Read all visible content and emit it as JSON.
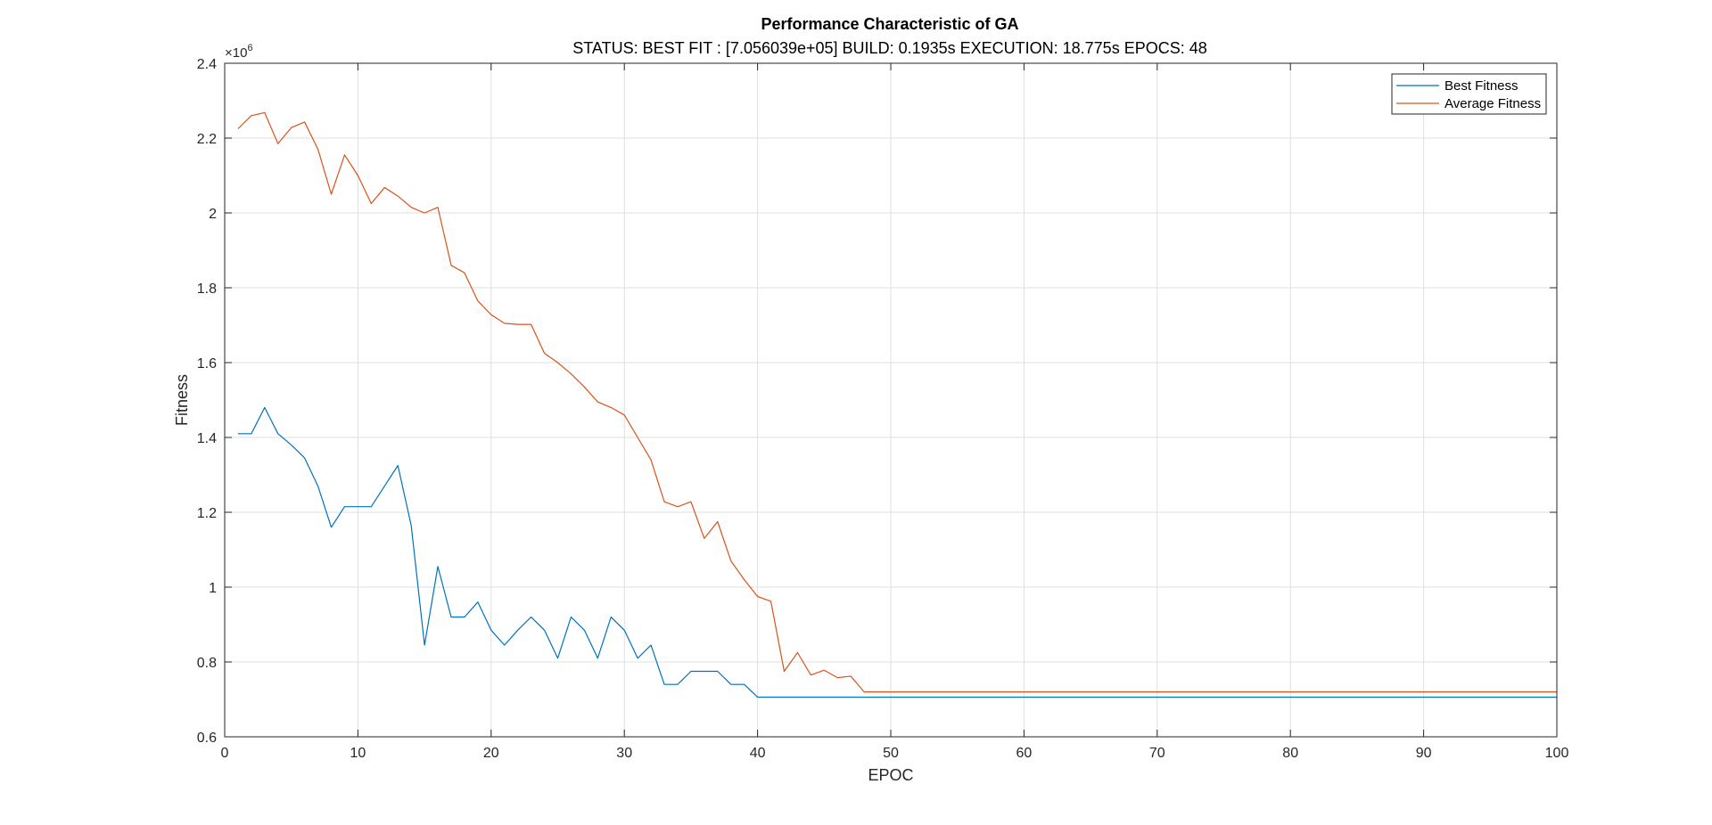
{
  "chart_data": {
    "type": "line",
    "title": "Performance Characteristic of GA",
    "subtitle": "STATUS: BEST FIT : [7.056039e+05] BUILD: 0.1935s EXECUTION: 18.775s EPOCS: 48",
    "xlabel": "EPOC",
    "ylabel": "Fitness",
    "y_exponent_base": "×10",
    "y_exponent_power": "6",
    "y_multiplier": 1000000,
    "xlim": [
      0,
      100
    ],
    "ylim": [
      0.6,
      2.4
    ],
    "x_ticks": [
      0,
      10,
      20,
      30,
      40,
      50,
      60,
      70,
      80,
      90,
      100
    ],
    "x_tick_labels": [
      "0",
      "10",
      "20",
      "30",
      "40",
      "50",
      "60",
      "70",
      "80",
      "90",
      "100"
    ],
    "y_ticks": [
      0.6,
      0.8,
      1.0,
      1.2,
      1.4,
      1.6,
      1.8,
      2.0,
      2.2,
      2.4
    ],
    "y_tick_labels": [
      "0.6",
      "0.8",
      "1",
      "1.2",
      "1.4",
      "1.6",
      "1.8",
      "2",
      "2.2",
      "2.4"
    ],
    "grid": true,
    "legend_position": "top-right",
    "x": [
      1,
      2,
      3,
      4,
      5,
      6,
      7,
      8,
      9,
      10,
      11,
      12,
      13,
      14,
      15,
      16,
      17,
      18,
      19,
      20,
      21,
      22,
      23,
      24,
      25,
      26,
      27,
      28,
      29,
      30,
      31,
      32,
      33,
      34,
      35,
      36,
      37,
      38,
      39,
      40,
      41,
      42,
      43,
      44,
      45,
      46,
      47,
      48,
      49,
      50,
      51,
      52,
      53,
      54,
      55,
      56,
      57,
      58,
      59,
      60,
      61,
      62,
      63,
      64,
      65,
      66,
      67,
      68,
      69,
      70,
      71,
      72,
      73,
      74,
      75,
      76,
      77,
      78,
      79,
      80,
      81,
      82,
      83,
      84,
      85,
      86,
      87,
      88,
      89,
      90,
      91,
      92,
      93,
      94,
      95,
      96,
      97,
      98,
      99,
      100
    ],
    "series": [
      {
        "name": "Best Fitness",
        "color": "#0072BD",
        "values": [
          1.41,
          1.41,
          1.48,
          1.41,
          1.38,
          1.345,
          1.27,
          1.16,
          1.215,
          1.215,
          1.215,
          1.27,
          1.325,
          1.165,
          0.845,
          1.055,
          0.92,
          0.92,
          0.96,
          0.885,
          0.845,
          0.885,
          0.92,
          0.885,
          0.81,
          0.92,
          0.885,
          0.81,
          0.92,
          0.885,
          0.81,
          0.845,
          0.74,
          0.74,
          0.775,
          0.775,
          0.775,
          0.74,
          0.74,
          0.706,
          0.706,
          0.706,
          0.706,
          0.706,
          0.706,
          0.706,
          0.706,
          0.706,
          0.706,
          0.706,
          0.706,
          0.706,
          0.706,
          0.706,
          0.706,
          0.706,
          0.706,
          0.706,
          0.706,
          0.706,
          0.706,
          0.706,
          0.706,
          0.706,
          0.706,
          0.706,
          0.706,
          0.706,
          0.706,
          0.706,
          0.706,
          0.706,
          0.706,
          0.706,
          0.706,
          0.706,
          0.706,
          0.706,
          0.706,
          0.706,
          0.706,
          0.706,
          0.706,
          0.706,
          0.706,
          0.706,
          0.706,
          0.706,
          0.706,
          0.706,
          0.706,
          0.706,
          0.706,
          0.706,
          0.706,
          0.706,
          0.706,
          0.706,
          0.706,
          0.706
        ]
      },
      {
        "name": "Average Fitness",
        "color": "#D95319",
        "values": [
          2.225,
          2.26,
          2.268,
          2.185,
          2.228,
          2.243,
          2.17,
          2.05,
          2.155,
          2.1,
          2.025,
          2.068,
          2.045,
          2.015,
          2.0,
          2.015,
          1.86,
          1.84,
          1.765,
          1.728,
          1.705,
          1.702,
          1.702,
          1.625,
          1.6,
          1.57,
          1.535,
          1.495,
          1.48,
          1.46,
          1.4,
          1.34,
          1.228,
          1.215,
          1.228,
          1.13,
          1.175,
          1.07,
          1.02,
          0.975,
          0.962,
          0.775,
          0.825,
          0.765,
          0.778,
          0.758,
          0.762,
          0.72,
          0.72,
          0.72,
          0.72,
          0.72,
          0.72,
          0.72,
          0.72,
          0.72,
          0.72,
          0.72,
          0.72,
          0.72,
          0.72,
          0.72,
          0.72,
          0.72,
          0.72,
          0.72,
          0.72,
          0.72,
          0.72,
          0.72,
          0.72,
          0.72,
          0.72,
          0.72,
          0.72,
          0.72,
          0.72,
          0.72,
          0.72,
          0.72,
          0.72,
          0.72,
          0.72,
          0.72,
          0.72,
          0.72,
          0.72,
          0.72,
          0.72,
          0.72,
          0.72,
          0.72,
          0.72,
          0.72,
          0.72,
          0.72,
          0.72,
          0.72,
          0.72,
          0.72
        ]
      }
    ]
  }
}
